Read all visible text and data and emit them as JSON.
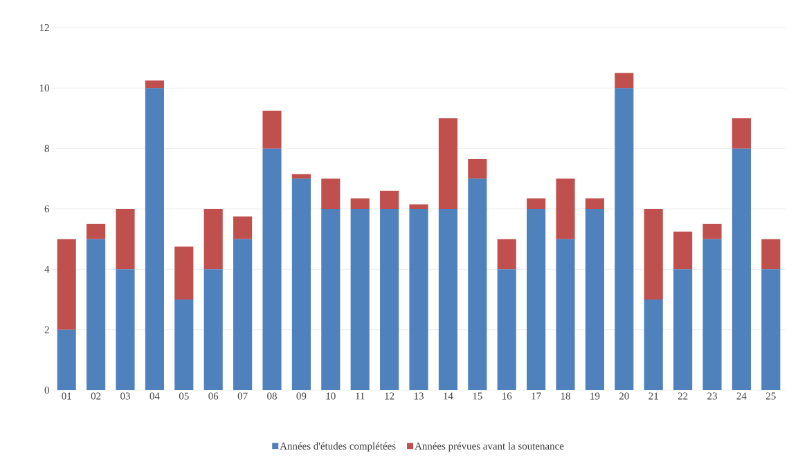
{
  "chart_data": {
    "type": "bar",
    "stacked": true,
    "categories": [
      "01",
      "02",
      "03",
      "04",
      "05",
      "06",
      "07",
      "08",
      "09",
      "10",
      "11",
      "12",
      "13",
      "14",
      "15",
      "16",
      "17",
      "18",
      "19",
      "20",
      "21",
      "22",
      "23",
      "24",
      "25"
    ],
    "series": [
      {
        "name": "Années d'études complétées",
        "color": "#4f81bd",
        "values": [
          2,
          5,
          4,
          10,
          3,
          4,
          5,
          8,
          7,
          6,
          6,
          6,
          6,
          6,
          7,
          4,
          6,
          5,
          6,
          10,
          3,
          4,
          5,
          8,
          4
        ]
      },
      {
        "name": "Années prévues avant la soutenance",
        "color": "#c0504d",
        "values": [
          3,
          0.5,
          2,
          0.25,
          1.75,
          2,
          0.75,
          1.25,
          0.15,
          1,
          0.35,
          0.6,
          0.15,
          3,
          0.65,
          1,
          0.35,
          2,
          0.35,
          0.5,
          3,
          1.25,
          0.5,
          1,
          1
        ]
      }
    ],
    "ylim": [
      0,
      12
    ],
    "yticks": [
      0,
      2,
      4,
      6,
      8,
      10,
      12
    ],
    "grid": "y",
    "legend": "bottom"
  }
}
